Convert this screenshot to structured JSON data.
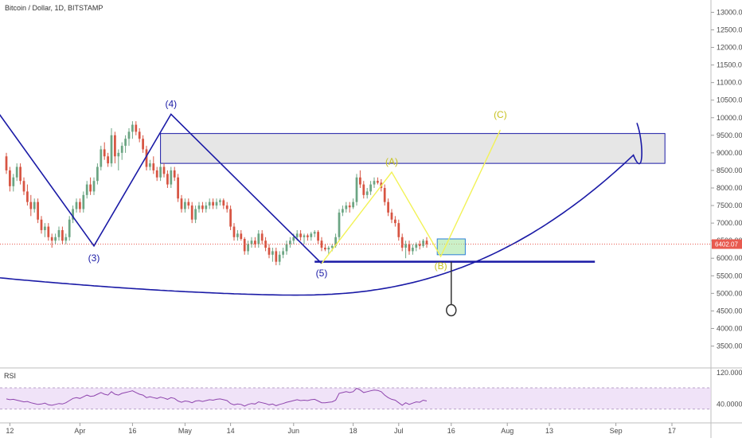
{
  "chart_data": {
    "type": "candlestick",
    "title": "Bitcoin / Dollar, 1D, BITSTAMP",
    "symbol": "Bitcoin / Dollar",
    "interval": "1D",
    "exchange": "BITSTAMP",
    "last_price": "6402.07",
    "last_price_value": 6402.07,
    "y_axis": {
      "ylim": [
        2900,
        13350
      ],
      "ticks": [
        13000,
        12500,
        12000,
        11500,
        11000,
        10500,
        10000,
        9500,
        9000,
        8500,
        8000,
        7500,
        7000,
        6500,
        6000,
        5500,
        5000,
        4500,
        4000,
        3500
      ],
      "tick_labels": [
        "13000.00",
        "12500.00",
        "12000.00",
        "11500.00",
        "11000.00",
        "10500.00",
        "10000.00",
        "9500.00",
        "9000.00",
        "8500.00",
        "8000.00",
        "7500.00",
        "7000.00",
        "6500.00",
        "6000.00",
        "5500.00",
        "5000.00",
        "4500.00",
        "4000.00",
        "3500.00"
      ]
    },
    "x_axis": {
      "start_day": 0,
      "end_day": 185,
      "ticks": [
        {
          "label": "12",
          "day": 1
        },
        {
          "label": "Apr",
          "day": 21
        },
        {
          "label": "16",
          "day": 36
        },
        {
          "label": "May",
          "day": 51
        },
        {
          "label": "14",
          "day": 64
        },
        {
          "label": "Jun",
          "day": 82
        },
        {
          "label": "18",
          "day": 99
        },
        {
          "label": "Jul",
          "day": 112
        },
        {
          "label": "16",
          "day": 127
        },
        {
          "label": "Aug",
          "day": 143
        },
        {
          "label": "13",
          "day": 155
        },
        {
          "label": "Sep",
          "day": 174
        },
        {
          "label": "17",
          "day": 190
        }
      ]
    },
    "candles": [
      [
        8900,
        9000,
        8400,
        8500
      ],
      [
        8500,
        8600,
        7900,
        8050
      ],
      [
        8050,
        8400,
        7900,
        8300
      ],
      [
        8300,
        8700,
        8200,
        8600
      ],
      [
        8600,
        8700,
        8100,
        8200
      ],
      [
        8200,
        8300,
        7800,
        7900
      ],
      [
        7900,
        8100,
        7500,
        7600
      ],
      [
        7600,
        7800,
        7200,
        7400
      ],
      [
        7400,
        7700,
        7300,
        7600
      ],
      [
        7600,
        7700,
        7000,
        7100
      ],
      [
        7100,
        7200,
        6700,
        6800
      ],
      [
        6800,
        7000,
        6600,
        6900
      ],
      [
        6900,
        7000,
        6500,
        6600
      ],
      [
        6600,
        6700,
        6300,
        6500
      ],
      [
        6500,
        6700,
        6400,
        6600
      ],
      [
        6600,
        6900,
        6500,
        6800
      ],
      [
        6800,
        6900,
        6400,
        6500
      ],
      [
        6500,
        6700,
        6400,
        6600
      ],
      [
        6600,
        7200,
        6500,
        7100
      ],
      [
        7100,
        7500,
        7000,
        7400
      ],
      [
        7400,
        7700,
        7300,
        7600
      ],
      [
        7600,
        7700,
        7300,
        7400
      ],
      [
        7400,
        7900,
        7300,
        7800
      ],
      [
        7800,
        8200,
        7700,
        8100
      ],
      [
        8100,
        8300,
        7800,
        7900
      ],
      [
        7900,
        8300,
        7800,
        8200
      ],
      [
        8200,
        8700,
        8100,
        8600
      ],
      [
        8600,
        9200,
        8500,
        9100
      ],
      [
        9100,
        9300,
        8800,
        8900
      ],
      [
        8900,
        9000,
        8600,
        8700
      ],
      [
        8700,
        9700,
        8600,
        9500
      ],
      [
        9500,
        9600,
        8700,
        8900
      ],
      [
        8900,
        9100,
        8500,
        9000
      ],
      [
        9000,
        9300,
        8800,
        9200
      ],
      [
        9200,
        9500,
        9000,
        9400
      ],
      [
        9400,
        9700,
        9200,
        9600
      ],
      [
        9600,
        9900,
        9400,
        9800
      ],
      [
        9800,
        9900,
        9500,
        9600
      ],
      [
        9600,
        9700,
        9300,
        9400
      ],
      [
        9400,
        9500,
        9000,
        9100
      ],
      [
        9100,
        9200,
        8500,
        8600
      ],
      [
        8600,
        8800,
        8500,
        8700
      ],
      [
        8700,
        8900,
        8400,
        8500
      ],
      [
        8500,
        8600,
        8200,
        8300
      ],
      [
        8300,
        8700,
        8200,
        8600
      ],
      [
        8600,
        8700,
        8300,
        8400
      ],
      [
        8400,
        8500,
        8000,
        8100
      ],
      [
        8100,
        8600,
        8000,
        8500
      ],
      [
        8500,
        8600,
        8200,
        8300
      ],
      [
        8300,
        8400,
        7600,
        7700
      ],
      [
        7700,
        7800,
        7300,
        7400
      ],
      [
        7400,
        7700,
        7300,
        7600
      ],
      [
        7600,
        7700,
        7400,
        7500
      ],
      [
        7500,
        7600,
        7000,
        7100
      ],
      [
        7100,
        7500,
        7000,
        7400
      ],
      [
        7400,
        7600,
        7300,
        7500
      ],
      [
        7500,
        7600,
        7300,
        7400
      ],
      [
        7400,
        7600,
        7300,
        7500
      ],
      [
        7500,
        7700,
        7400,
        7600
      ],
      [
        7600,
        7700,
        7400,
        7500
      ],
      [
        7500,
        7700,
        7400,
        7600
      ],
      [
        7600,
        7700,
        7500,
        7650
      ],
      [
        7650,
        7700,
        7400,
        7500
      ],
      [
        7500,
        7600,
        7300,
        7400
      ],
      [
        7400,
        7500,
        6800,
        6900
      ],
      [
        6900,
        7000,
        6500,
        6600
      ],
      [
        6600,
        6800,
        6500,
        6700
      ],
      [
        6700,
        6800,
        6500,
        6550
      ],
      [
        6550,
        6600,
        6100,
        6200
      ],
      [
        6200,
        6500,
        6100,
        6400
      ],
      [
        6400,
        6600,
        6300,
        6500
      ],
      [
        6500,
        6600,
        6300,
        6400
      ],
      [
        6400,
        6800,
        6300,
        6700
      ],
      [
        6700,
        6800,
        6400,
        6500
      ],
      [
        6500,
        6600,
        6200,
        6300
      ],
      [
        6300,
        6400,
        6000,
        6100
      ],
      [
        6100,
        6300,
        5900,
        6200
      ],
      [
        6200,
        6300,
        5800,
        5900
      ],
      [
        5900,
        6200,
        5800,
        6100
      ],
      [
        6100,
        6300,
        6000,
        6200
      ],
      [
        6200,
        6500,
        6100,
        6400
      ],
      [
        6400,
        6600,
        6300,
        6500
      ],
      [
        6500,
        6700,
        6400,
        6600
      ],
      [
        6600,
        6800,
        6500,
        6700
      ],
      [
        6700,
        6800,
        6500,
        6600
      ],
      [
        6600,
        6700,
        6400,
        6650
      ],
      [
        6650,
        6700,
        6500,
        6600
      ],
      [
        6600,
        6750,
        6500,
        6700
      ],
      [
        6700,
        6800,
        6600,
        6750
      ],
      [
        6750,
        6800,
        6400,
        6500
      ],
      [
        6500,
        6600,
        6200,
        6300
      ],
      [
        6300,
        6400,
        6200,
        6250
      ],
      [
        6250,
        6350,
        6100,
        6300
      ],
      [
        6300,
        6400,
        6200,
        6350
      ],
      [
        6350,
        6700,
        6300,
        6600
      ],
      [
        6600,
        7400,
        6500,
        7300
      ],
      [
        7300,
        7500,
        7200,
        7400
      ],
      [
        7400,
        7600,
        7300,
        7500
      ],
      [
        7500,
        7600,
        7300,
        7450
      ],
      [
        7450,
        7700,
        7400,
        7600
      ],
      [
        7600,
        8400,
        7500,
        8300
      ],
      [
        8300,
        8500,
        8000,
        8100
      ],
      [
        8100,
        8200,
        7700,
        7800
      ],
      [
        7800,
        8000,
        7700,
        7900
      ],
      [
        7900,
        8200,
        7800,
        8100
      ],
      [
        8100,
        8300,
        8000,
        8200
      ],
      [
        8200,
        8300,
        8100,
        8150
      ],
      [
        8150,
        8250,
        7900,
        8000
      ],
      [
        8000,
        8100,
        7500,
        7600
      ],
      [
        7600,
        7700,
        7200,
        7300
      ],
      [
        7300,
        7400,
        7000,
        7100
      ],
      [
        7100,
        7200,
        6900,
        7000
      ],
      [
        7000,
        7100,
        6500,
        6600
      ],
      [
        6600,
        6700,
        6200,
        6300
      ],
      [
        6300,
        6500,
        6000,
        6400
      ],
      [
        6400,
        6500,
        6100,
        6200
      ],
      [
        6200,
        6400,
        6100,
        6300
      ],
      [
        6300,
        6450,
        6200,
        6400
      ],
      [
        6400,
        6500,
        6250,
        6350
      ],
      [
        6350,
        6550,
        6300,
        6500
      ],
      [
        6500,
        6600,
        6300,
        6400
      ]
    ],
    "rsi": {
      "label": "RSI",
      "ylim": [
        0,
        120
      ],
      "band": [
        30,
        70
      ],
      "tick_labels": [
        "120.0000",
        "40.0000"
      ],
      "tick_values": [
        120,
        40
      ],
      "values": [
        49,
        47,
        48,
        46,
        44,
        42,
        43,
        40,
        38,
        36,
        37,
        39,
        35,
        34,
        36,
        38,
        37,
        40,
        45,
        50,
        52,
        50,
        54,
        58,
        55,
        56,
        60,
        64,
        60,
        58,
        66,
        60,
        58,
        62,
        64,
        66,
        68,
        64,
        60,
        58,
        52,
        54,
        52,
        50,
        53,
        51,
        48,
        52,
        50,
        44,
        41,
        44,
        43,
        40,
        44,
        45,
        43,
        45,
        47,
        46,
        48,
        49,
        47,
        45,
        38,
        35,
        37,
        36,
        32,
        36,
        38,
        37,
        42,
        40,
        38,
        35,
        37,
        33,
        36,
        38,
        41,
        43,
        45,
        47,
        45,
        46,
        45,
        47,
        48,
        44,
        40,
        40,
        41,
        42,
        46,
        62,
        64,
        66,
        64,
        66,
        74,
        70,
        64,
        66,
        68,
        70,
        69,
        66,
        58,
        52,
        48,
        46,
        40,
        34,
        40,
        36,
        39,
        42,
        41,
        46,
        44
      ]
    },
    "annotations": {
      "waves": [
        {
          "label": "(3)",
          "day": 25,
          "price": 6300
        },
        {
          "label": "(4)",
          "day": 47,
          "price": 10050
        },
        {
          "label": "(5)",
          "day": 90,
          "price": 5850
        },
        {
          "label": "(A)",
          "day": 110,
          "price": 8450
        },
        {
          "label": "(B)",
          "day": 124,
          "price": 6000
        },
        {
          "label": "(C)",
          "day": 141,
          "price": 9750
        }
      ],
      "resistance_zone": [
        8700,
        9550
      ],
      "support_level": 5900,
      "target_box": [
        6100,
        6550
      ]
    },
    "colors": {
      "bull": "#6ba583",
      "bear": "#d75442",
      "impulse": "#1a1aa6",
      "correction": "#f2f257",
      "correction_label": "#c7c220",
      "price_line": "#e85a4f",
      "rsi_line": "#8e44ad",
      "rsi_band": "#ead7f5"
    }
  }
}
